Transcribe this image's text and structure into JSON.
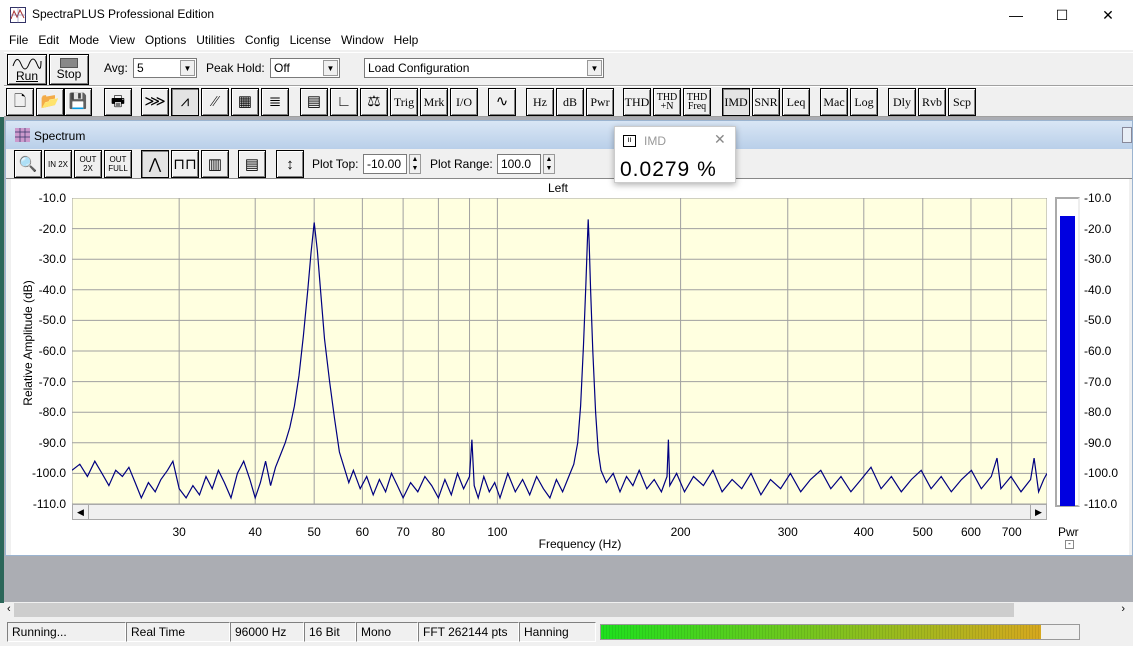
{
  "app": {
    "title": "SpectraPLUS Professional Edition",
    "icon": "spectrum-app-icon"
  },
  "window_controls": {
    "minimize": "—",
    "maximize": "☐",
    "close": "✕"
  },
  "menu": [
    "File",
    "Edit",
    "Mode",
    "View",
    "Options",
    "Utilities",
    "Config",
    "License",
    "Window",
    "Help"
  ],
  "toolbar1": {
    "run": "Run",
    "stop": "Stop",
    "avg_label": "Avg:",
    "avg_value": "5",
    "peak_hold_label": "Peak Hold:",
    "peak_hold_value": "Off",
    "config_value": "Load Configuration"
  },
  "toolbar2": [
    {
      "id": "new",
      "icon": "new-file-icon"
    },
    {
      "id": "open",
      "icon": "open-folder-icon"
    },
    {
      "id": "save",
      "icon": "save-icon",
      "disabled": true
    },
    {
      "id": "print",
      "icon": "print-icon"
    },
    {
      "id": "record",
      "icon": "record-icon"
    },
    {
      "id": "spectrum",
      "icon": "spectrum-view-icon",
      "pressed": true
    },
    {
      "id": "time-series",
      "icon": "time-series-icon"
    },
    {
      "id": "spectrogram",
      "icon": "spectrogram-icon"
    },
    {
      "id": "3d-surface",
      "icon": "3d-surface-icon"
    },
    {
      "id": "settings",
      "icon": "settings-panel-icon"
    },
    {
      "id": "axis",
      "icon": "axis-icon"
    },
    {
      "id": "calibration",
      "icon": "calibration-icon"
    },
    {
      "id": "trig",
      "label": "Trig"
    },
    {
      "id": "mrk",
      "label": "Mrk"
    },
    {
      "id": "io",
      "label": "I/O"
    },
    {
      "id": "generator",
      "icon": "signal-generator-icon"
    },
    {
      "id": "hz",
      "label": "Hz"
    },
    {
      "id": "db",
      "label": "dB"
    },
    {
      "id": "pwr",
      "label": "Pwr"
    },
    {
      "id": "thd",
      "label": "THD"
    },
    {
      "id": "thdn",
      "label": "THD +N"
    },
    {
      "id": "thdfreq",
      "label": "THD Freq"
    },
    {
      "id": "imd",
      "label": "IMD",
      "pressed": true
    },
    {
      "id": "snr",
      "label": "SNR"
    },
    {
      "id": "leq",
      "label": "Leq"
    },
    {
      "id": "mac",
      "label": "Mac"
    },
    {
      "id": "log",
      "label": "Log"
    },
    {
      "id": "dly",
      "label": "Dly"
    },
    {
      "id": "rvb",
      "label": "Rvb"
    },
    {
      "id": "scp",
      "label": "Scp"
    }
  ],
  "spectrum_window": {
    "title": "Spectrum",
    "plot_top_label": "Plot Top:",
    "plot_top_value": "-10.00",
    "plot_range_label": "Plot Range:",
    "plot_range_value": "100.0",
    "tools": [
      {
        "id": "zoom",
        "icon": "magnifier-icon"
      },
      {
        "id": "zoom-in-2x",
        "label": "IN 2X"
      },
      {
        "id": "zoom-out-2x",
        "label": "OUT 2X"
      },
      {
        "id": "zoom-out-full",
        "label": "OUT FULL"
      },
      {
        "id": "line",
        "icon": "line-plot-icon",
        "pressed": true
      },
      {
        "id": "step",
        "icon": "step-plot-icon"
      },
      {
        "id": "bar",
        "icon": "bar-plot-icon"
      },
      {
        "id": "settings",
        "icon": "settings-panel-icon"
      },
      {
        "id": "autoscale",
        "icon": "vertical-scale-icon"
      }
    ]
  },
  "imd_popup": {
    "title": "IMD",
    "value": "0.0279 %"
  },
  "power_meter": {
    "label": "Pwr",
    "level_db": -13,
    "ticks": [
      "-10.0",
      "-20.0",
      "-30.0",
      "-40.0",
      "-50.0",
      "-60.0",
      "-70.0",
      "-80.0",
      "-90.0",
      "-100.0",
      "-110.0"
    ]
  },
  "chart_data": {
    "type": "line",
    "title": "Left",
    "xlabel": "Frequency (Hz)",
    "ylabel": "Relative Amplitude (dB)",
    "xscale": "log",
    "xlim": [
      20,
      800
    ],
    "ylim": [
      -110,
      -10
    ],
    "grid": true,
    "line_color": "#000080",
    "background": "#ffffe0",
    "xticks": [
      30,
      40,
      50,
      60,
      70,
      80,
      100,
      200,
      300,
      400,
      500,
      600,
      700
    ],
    "yticks": [
      "-10.0",
      "-20.0",
      "-30.0",
      "-40.0",
      "-50.0",
      "-60.0",
      "-70.0",
      "-80.0",
      "-90.0",
      "-100.0",
      "-110.0"
    ],
    "points": [
      [
        20,
        -99
      ],
      [
        20.6,
        -97
      ],
      [
        21.2,
        -101
      ],
      [
        21.8,
        -96
      ],
      [
        22.4,
        -100
      ],
      [
        23,
        -104
      ],
      [
        23.6,
        -99
      ],
      [
        24.2,
        -101
      ],
      [
        24.8,
        -98
      ],
      [
        25.4,
        -103
      ],
      [
        26,
        -108
      ],
      [
        26.7,
        -103
      ],
      [
        27.4,
        -106
      ],
      [
        28,
        -102
      ],
      [
        28.7,
        -99
      ],
      [
        29.3,
        -96
      ],
      [
        30,
        -105
      ],
      [
        30.8,
        -108
      ],
      [
        31.6,
        -104
      ],
      [
        32.4,
        -107
      ],
      [
        33.2,
        -101
      ],
      [
        34,
        -105
      ],
      [
        34.8,
        -99
      ],
      [
        35.6,
        -103
      ],
      [
        36.5,
        -108
      ],
      [
        37.4,
        -100
      ],
      [
        38.3,
        -96
      ],
      [
        39.2,
        -102
      ],
      [
        40,
        -108
      ],
      [
        40.8,
        -103
      ],
      [
        41.6,
        -96
      ],
      [
        42.4,
        -104
      ],
      [
        43.2,
        -98
      ],
      [
        44,
        -94
      ],
      [
        44.8,
        -90
      ],
      [
        45.6,
        -85
      ],
      [
        46.4,
        -78
      ],
      [
        47.2,
        -68
      ],
      [
        48,
        -55
      ],
      [
        48.8,
        -40
      ],
      [
        49.4,
        -28
      ],
      [
        50,
        -18
      ],
      [
        50.6,
        -27
      ],
      [
        51.2,
        -40
      ],
      [
        52,
        -56
      ],
      [
        53,
        -70
      ],
      [
        54,
        -82
      ],
      [
        55,
        -93
      ],
      [
        56,
        -98
      ],
      [
        57,
        -103
      ],
      [
        58,
        -99
      ],
      [
        59.5,
        -105
      ],
      [
        61,
        -101
      ],
      [
        62.5,
        -107
      ],
      [
        64,
        -102
      ],
      [
        65.5,
        -106
      ],
      [
        67,
        -100
      ],
      [
        68.5,
        -104
      ],
      [
        70,
        -108
      ],
      [
        72,
        -103
      ],
      [
        74,
        -106
      ],
      [
        76,
        -101
      ],
      [
        78,
        -104
      ],
      [
        80,
        -108
      ],
      [
        82,
        -102
      ],
      [
        84,
        -107
      ],
      [
        86,
        -100
      ],
      [
        88,
        -105
      ],
      [
        90,
        -101
      ],
      [
        90.8,
        -89
      ],
      [
        91.6,
        -104
      ],
      [
        93,
        -108
      ],
      [
        95,
        -101
      ],
      [
        97,
        -106
      ],
      [
        99,
        -103
      ],
      [
        101,
        -108
      ],
      [
        104,
        -100
      ],
      [
        107,
        -106
      ],
      [
        110,
        -102
      ],
      [
        113,
        -107
      ],
      [
        116,
        -101
      ],
      [
        119,
        -105
      ],
      [
        122,
        -108
      ],
      [
        125,
        -102
      ],
      [
        128,
        -106
      ],
      [
        131,
        -101
      ],
      [
        133.5,
        -97
      ],
      [
        135.5,
        -90
      ],
      [
        137,
        -78
      ],
      [
        138.5,
        -58
      ],
      [
        139.8,
        -38
      ],
      [
        140.6,
        -24
      ],
      [
        141,
        -17
      ],
      [
        141.5,
        -24
      ],
      [
        142.3,
        -40
      ],
      [
        143.5,
        -60
      ],
      [
        145,
        -80
      ],
      [
        146.5,
        -93
      ],
      [
        148,
        -99
      ],
      [
        151,
        -103
      ],
      [
        155,
        -100
      ],
      [
        159,
        -106
      ],
      [
        163,
        -101
      ],
      [
        167,
        -104
      ],
      [
        171,
        -99
      ],
      [
        176,
        -105
      ],
      [
        181,
        -102
      ],
      [
        186,
        -106
      ],
      [
        190,
        -101
      ],
      [
        191,
        -89
      ],
      [
        192,
        -104
      ],
      [
        197,
        -100
      ],
      [
        203,
        -106
      ],
      [
        210,
        -101
      ],
      [
        218,
        -104
      ],
      [
        226,
        -99
      ],
      [
        234,
        -106
      ],
      [
        243,
        -102
      ],
      [
        252,
        -105
      ],
      [
        261,
        -100
      ],
      [
        271,
        -107
      ],
      [
        281,
        -102
      ],
      [
        292,
        -105
      ],
      [
        303,
        -100
      ],
      [
        315,
        -106
      ],
      [
        327,
        -102
      ],
      [
        340,
        -99
      ],
      [
        353,
        -105
      ],
      [
        367,
        -101
      ],
      [
        381,
        -106
      ],
      [
        396,
        -102
      ],
      [
        411,
        -98
      ],
      [
        427,
        -105
      ],
      [
        444,
        -101
      ],
      [
        461,
        -106
      ],
      [
        479,
        -102
      ],
      [
        497,
        -99
      ],
      [
        516,
        -105
      ],
      [
        536,
        -101
      ],
      [
        557,
        -106
      ],
      [
        579,
        -102
      ],
      [
        601,
        -99
      ],
      [
        624,
        -105
      ],
      [
        648,
        -101
      ],
      [
        662,
        -95
      ],
      [
        672,
        -105
      ],
      [
        698,
        -101
      ],
      [
        725,
        -106
      ],
      [
        752,
        -102
      ],
      [
        762,
        -95
      ],
      [
        775,
        -106
      ],
      [
        790,
        -102
      ],
      [
        800,
        -100
      ]
    ]
  },
  "status": [
    "Running...",
    "Real Time",
    "96000 Hz",
    "16 Bit",
    "Mono",
    "FFT 262144 pts",
    "Hanning"
  ],
  "level_meter": {
    "level_fraction": 0.92,
    "colors": [
      "#1ee01e",
      "#d6a81e"
    ]
  }
}
